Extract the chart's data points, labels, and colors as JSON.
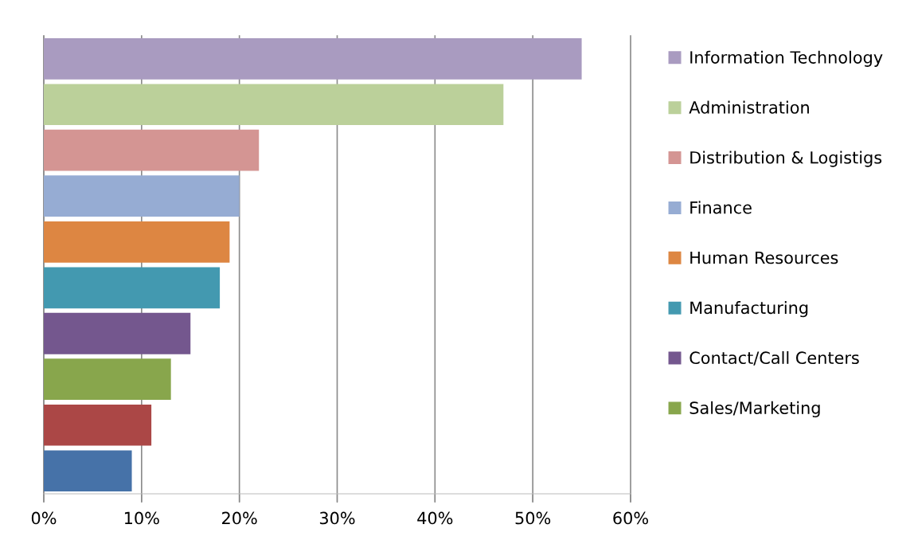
{
  "chart_data": {
    "type": "bar",
    "orientation": "horizontal",
    "categories": [
      null,
      null,
      null,
      null,
      null,
      null,
      null,
      null,
      null,
      null
    ],
    "series": [
      {
        "name": "Information Technology",
        "color": "#a99bc0",
        "values": [
          55,
          null,
          null,
          null,
          null,
          null,
          null,
          null,
          null,
          null
        ]
      },
      {
        "name": "Administration",
        "color": "#bbd09a",
        "values": [
          null,
          47,
          null,
          null,
          null,
          null,
          null,
          null,
          null,
          null
        ]
      },
      {
        "name": "Distribution & Logistigs",
        "color": "#d49593",
        "values": [
          null,
          null,
          22,
          null,
          null,
          null,
          null,
          null,
          null,
          null
        ]
      },
      {
        "name": "Finance",
        "color": "#96acd3",
        "values": [
          null,
          null,
          null,
          20,
          null,
          null,
          null,
          null,
          null,
          null
        ]
      },
      {
        "name": "Human Resources",
        "color": "#dd8642",
        "values": [
          null,
          null,
          null,
          null,
          19,
          null,
          null,
          null,
          null,
          null
        ]
      },
      {
        "name": "Manufacturing",
        "color": "#4399b0",
        "values": [
          null,
          null,
          null,
          null,
          null,
          18,
          null,
          null,
          null,
          null
        ]
      },
      {
        "name": "Contact/Call Centers",
        "color": "#74578e",
        "values": [
          null,
          null,
          null,
          null,
          null,
          null,
          15,
          null,
          null,
          null
        ]
      },
      {
        "name": "Sales/Marketing",
        "color": "#88a64c",
        "values": [
          null,
          null,
          null,
          null,
          null,
          null,
          null,
          13,
          null,
          null
        ]
      },
      {
        "color": "#ab4746",
        "values": [
          null,
          null,
          null,
          null,
          null,
          null,
          null,
          null,
          11,
          null
        ]
      },
      {
        "color": "#4672a8",
        "values": [
          null,
          null,
          null,
          null,
          null,
          null,
          null,
          null,
          null,
          9
        ]
      }
    ],
    "xlim": [
      0,
      60
    ],
    "xticks": [
      {
        "value": 0,
        "label": "0%"
      },
      {
        "value": 10,
        "label": "10%"
      },
      {
        "value": 20,
        "label": "20%"
      },
      {
        "value": 30,
        "label": "30%"
      },
      {
        "value": 40,
        "label": "40%"
      },
      {
        "value": 50,
        "label": "50%"
      },
      {
        "value": 60,
        "label": "60%"
      }
    ],
    "grid": "x",
    "legend": "right",
    "tick_labels": "x"
  }
}
